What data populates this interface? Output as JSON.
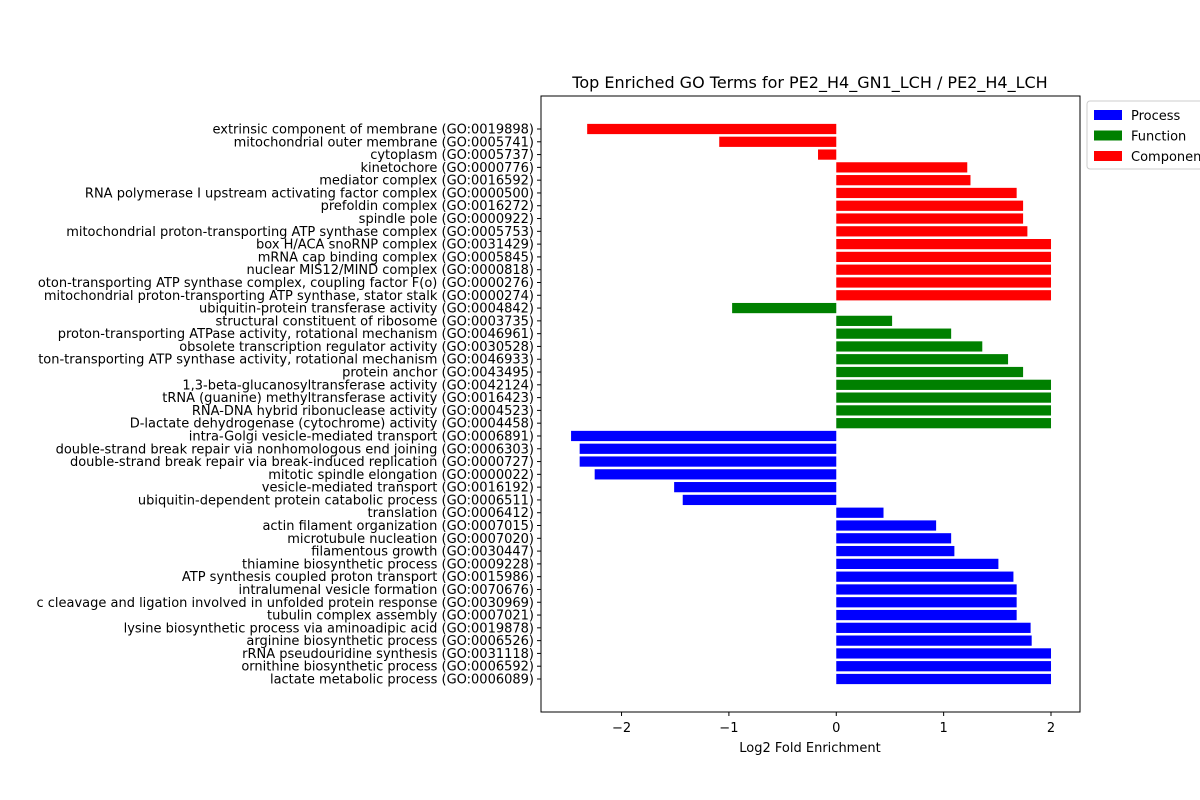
{
  "chart_data": {
    "type": "bar",
    "orientation": "horizontal",
    "title": "Top Enriched GO Terms for PE2_H4_GN1_LCH / PE2_H4_LCH",
    "xlabel": "Log2 Fold Enrichment",
    "ylabel": "",
    "xlim": [
      -2.75,
      2.27
    ],
    "xticks": [
      {
        "value": -2,
        "label": "−2"
      },
      {
        "value": -1,
        "label": "−1"
      },
      {
        "value": 0,
        "label": "0"
      },
      {
        "value": 1,
        "label": "1"
      },
      {
        "value": 2,
        "label": "2"
      }
    ],
    "grid": false,
    "legend_position": "outside-top-right",
    "colors": {
      "Process": "#0000ff",
      "Function": "#008000",
      "Component": "#ff0000"
    },
    "legend": [
      {
        "name": "Process",
        "color": "#0000ff"
      },
      {
        "name": "Function",
        "color": "#008000"
      },
      {
        "name": "Component",
        "color": "#ff0000"
      }
    ],
    "bars": [
      {
        "label": "lactate metabolic process (GO:0006089)",
        "value": 2.0,
        "category": "Process"
      },
      {
        "label": "ornithine biosynthetic process (GO:0006592)",
        "value": 2.0,
        "category": "Process"
      },
      {
        "label": "rRNA pseudouridine synthesis (GO:0031118)",
        "value": 2.0,
        "category": "Process"
      },
      {
        "label": "arginine biosynthetic process (GO:0006526)",
        "value": 1.82,
        "category": "Process"
      },
      {
        "label": "lysine biosynthetic process via aminoadipic acid (GO:0019878)",
        "value": 1.81,
        "category": "Process"
      },
      {
        "label": "tubulin complex assembly (GO:0007021)",
        "value": 1.68,
        "category": "Process"
      },
      {
        "label": "c cleavage and ligation involved in unfolded protein response (GO:0030969)",
        "value": 1.68,
        "category": "Process"
      },
      {
        "label": "intralumenal vesicle formation (GO:0070676)",
        "value": 1.68,
        "category": "Process"
      },
      {
        "label": "ATP synthesis coupled proton transport (GO:0015986)",
        "value": 1.65,
        "category": "Process"
      },
      {
        "label": "thiamine biosynthetic process (GO:0009228)",
        "value": 1.51,
        "category": "Process"
      },
      {
        "label": "filamentous growth (GO:0030447)",
        "value": 1.1,
        "category": "Process"
      },
      {
        "label": "microtubule nucleation (GO:0007020)",
        "value": 1.07,
        "category": "Process"
      },
      {
        "label": "actin filament organization (GO:0007015)",
        "value": 0.93,
        "category": "Process"
      },
      {
        "label": "translation (GO:0006412)",
        "value": 0.44,
        "category": "Process"
      },
      {
        "label": "ubiquitin-dependent protein catabolic process (GO:0006511)",
        "value": -1.43,
        "category": "Process"
      },
      {
        "label": "vesicle-mediated transport (GO:0016192)",
        "value": -1.51,
        "category": "Process"
      },
      {
        "label": "mitotic spindle elongation (GO:0000022)",
        "value": -2.25,
        "category": "Process"
      },
      {
        "label": "double-strand break repair via break-induced replication (GO:0000727)",
        "value": -2.39,
        "category": "Process"
      },
      {
        "label": "double-strand break repair via nonhomologous end joining (GO:0006303)",
        "value": -2.39,
        "category": "Process"
      },
      {
        "label": "intra-Golgi vesicle-mediated transport (GO:0006891)",
        "value": -2.47,
        "category": "Process"
      },
      {
        "label": "D-lactate dehydrogenase (cytochrome) activity (GO:0004458)",
        "value": 2.0,
        "category": "Function"
      },
      {
        "label": "RNA-DNA hybrid ribonuclease activity (GO:0004523)",
        "value": 2.0,
        "category": "Function"
      },
      {
        "label": "tRNA (guanine) methyltransferase activity (GO:0016423)",
        "value": 2.0,
        "category": "Function"
      },
      {
        "label": "1,3-beta-glucanosyltransferase activity (GO:0042124)",
        "value": 2.0,
        "category": "Function"
      },
      {
        "label": "protein anchor (GO:0043495)",
        "value": 1.74,
        "category": "Function"
      },
      {
        "label": "ton-transporting ATP synthase activity, rotational mechanism (GO:0046933)",
        "value": 1.6,
        "category": "Function"
      },
      {
        "label": "obsolete transcription regulator activity (GO:0030528)",
        "value": 1.36,
        "category": "Function"
      },
      {
        "label": "proton-transporting ATPase activity, rotational mechanism (GO:0046961)",
        "value": 1.07,
        "category": "Function"
      },
      {
        "label": "structural constituent of ribosome (GO:0003735)",
        "value": 0.52,
        "category": "Function"
      },
      {
        "label": "ubiquitin-protein transferase activity (GO:0004842)",
        "value": -0.97,
        "category": "Function"
      },
      {
        "label": "mitochondrial proton-transporting ATP synthase, stator stalk (GO:0000274)",
        "value": 2.0,
        "category": "Component"
      },
      {
        "label": "oton-transporting ATP synthase complex, coupling factor F(o) (GO:0000276)",
        "value": 2.0,
        "category": "Component"
      },
      {
        "label": "nuclear MIS12/MIND complex (GO:0000818)",
        "value": 2.0,
        "category": "Component"
      },
      {
        "label": "mRNA cap binding complex (GO:0005845)",
        "value": 2.0,
        "category": "Component"
      },
      {
        "label": "box H/ACA snoRNP complex (GO:0031429)",
        "value": 2.0,
        "category": "Component"
      },
      {
        "label": "mitochondrial proton-transporting ATP synthase complex (GO:0005753)",
        "value": 1.78,
        "category": "Component"
      },
      {
        "label": "spindle pole (GO:0000922)",
        "value": 1.74,
        "category": "Component"
      },
      {
        "label": "prefoldin complex (GO:0016272)",
        "value": 1.74,
        "category": "Component"
      },
      {
        "label": "RNA polymerase I upstream activating factor complex (GO:0000500)",
        "value": 1.68,
        "category": "Component"
      },
      {
        "label": "mediator complex (GO:0016592)",
        "value": 1.25,
        "category": "Component"
      },
      {
        "label": "kinetochore (GO:0000776)",
        "value": 1.22,
        "category": "Component"
      },
      {
        "label": "cytoplasm (GO:0005737)",
        "value": -0.17,
        "category": "Component"
      },
      {
        "label": "mitochondrial outer membrane (GO:0005741)",
        "value": -1.09,
        "category": "Component"
      },
      {
        "label": "extrinsic component of membrane (GO:0019898)",
        "value": -2.32,
        "category": "Component"
      }
    ]
  }
}
